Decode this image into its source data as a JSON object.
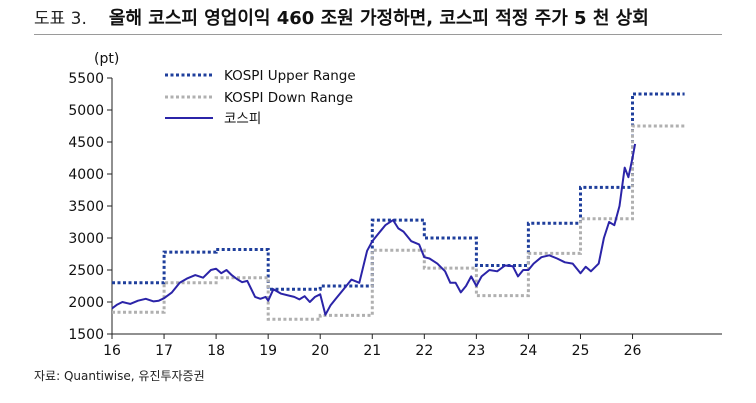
{
  "header": {
    "figure_number": "도표 3.",
    "title": "올해 코스피 영업이익 460 조원 가정하면, 코스피 적정 주가 5 천 상회"
  },
  "source": "자료: Quantiwise, 유진투자증권",
  "chart_data": {
    "type": "line",
    "unit_label": "(pt)",
    "ylim": [
      1500,
      5500
    ],
    "yticks": [
      1500,
      2000,
      2500,
      3000,
      3500,
      4000,
      4500,
      5000,
      5500
    ],
    "xlim": [
      2016,
      2027.2
    ],
    "xticks": [
      {
        "value": 2016,
        "label": "16"
      },
      {
        "value": 2017,
        "label": "17"
      },
      {
        "value": 2018,
        "label": "18"
      },
      {
        "value": 2019,
        "label": "19"
      },
      {
        "value": 2020,
        "label": "20"
      },
      {
        "value": 2021,
        "label": "21"
      },
      {
        "value": 2022,
        "label": "22"
      },
      {
        "value": 2023,
        "label": "23"
      },
      {
        "value": 2024,
        "label": "24"
      },
      {
        "value": 2025,
        "label": "25"
      },
      {
        "value": 2026,
        "label": "26"
      }
    ],
    "legend_position": "top-left",
    "series": [
      {
        "name": "KOSPI Upper Range",
        "style": "dotted",
        "color": "#1f3f9c",
        "x": [
          2016.0,
          2017.0,
          2017.0,
          2018.0,
          2018.0,
          2019.0,
          2019.0,
          2020.0,
          2020.0,
          2021.0,
          2021.0,
          2022.0,
          2022.0,
          2023.0,
          2023.0,
          2024.0,
          2024.0,
          2025.0,
          2025.0,
          2026.0,
          2026.0,
          2027.0
        ],
        "y": [
          2300,
          2300,
          2780,
          2780,
          2820,
          2820,
          2200,
          2200,
          2250,
          2250,
          3280,
          3280,
          3000,
          3000,
          2570,
          2570,
          3230,
          3230,
          3790,
          3790,
          5250,
          5250
        ]
      },
      {
        "name": "KOSPI Down Range",
        "style": "dotted",
        "color": "#b0b0b0",
        "x": [
          2016.0,
          2017.0,
          2017.0,
          2018.0,
          2018.0,
          2019.0,
          2019.0,
          2020.0,
          2020.0,
          2021.0,
          2021.0,
          2022.0,
          2022.0,
          2023.0,
          2023.0,
          2024.0,
          2024.0,
          2025.0,
          2025.0,
          2026.0,
          2026.0,
          2027.0
        ],
        "y": [
          1840,
          1840,
          2300,
          2300,
          2380,
          2380,
          1730,
          1730,
          1790,
          1790,
          2810,
          2810,
          2530,
          2530,
          2100,
          2100,
          2760,
          2760,
          3300,
          3300,
          4750,
          4750
        ]
      },
      {
        "name": "코스피",
        "style": "solid",
        "color": "#2b24a8",
        "x": [
          2016.0,
          2016.1,
          2016.2,
          2016.35,
          2016.5,
          2016.65,
          2016.8,
          2016.9,
          2017.0,
          2017.15,
          2017.3,
          2017.45,
          2017.6,
          2017.75,
          2017.9,
          2018.0,
          2018.1,
          2018.2,
          2018.3,
          2018.4,
          2018.5,
          2018.6,
          2018.75,
          2018.85,
          2018.95,
          2019.0,
          2019.1,
          2019.25,
          2019.4,
          2019.5,
          2019.6,
          2019.7,
          2019.8,
          2019.9,
          2020.0,
          2020.1,
          2020.2,
          2020.3,
          2020.45,
          2020.6,
          2020.75,
          2020.9,
          2021.0,
          2021.1,
          2021.25,
          2021.4,
          2021.5,
          2021.6,
          2021.75,
          2021.9,
          2022.0,
          2022.1,
          2022.25,
          2022.4,
          2022.5,
          2022.6,
          2022.7,
          2022.8,
          2022.9,
          2023.0,
          2023.1,
          2023.25,
          2023.4,
          2023.55,
          2023.7,
          2023.8,
          2023.9,
          2024.0,
          2024.1,
          2024.25,
          2024.4,
          2024.55,
          2024.7,
          2024.85,
          2024.95,
          2025.0,
          2025.1,
          2025.2,
          2025.35,
          2025.45,
          2025.55,
          2025.65,
          2025.75,
          2025.85,
          2025.92,
          2026.0,
          2026.05
        ],
        "y": [
          1900,
          1960,
          2000,
          1970,
          2020,
          2050,
          2010,
          2020,
          2060,
          2150,
          2300,
          2370,
          2420,
          2380,
          2500,
          2520,
          2450,
          2500,
          2420,
          2360,
          2310,
          2330,
          2080,
          2050,
          2080,
          2020,
          2200,
          2130,
          2100,
          2080,
          2040,
          2090,
          2000,
          2080,
          2120,
          1800,
          1950,
          2050,
          2200,
          2350,
          2300,
          2800,
          2950,
          3050,
          3200,
          3280,
          3150,
          3100,
          2950,
          2900,
          2700,
          2680,
          2600,
          2480,
          2300,
          2300,
          2150,
          2250,
          2400,
          2250,
          2400,
          2500,
          2480,
          2570,
          2560,
          2400,
          2500,
          2500,
          2600,
          2700,
          2730,
          2680,
          2620,
          2600,
          2500,
          2450,
          2550,
          2480,
          2600,
          3000,
          3250,
          3200,
          3500,
          4100,
          3950,
          4250,
          4470
        ]
      }
    ]
  }
}
